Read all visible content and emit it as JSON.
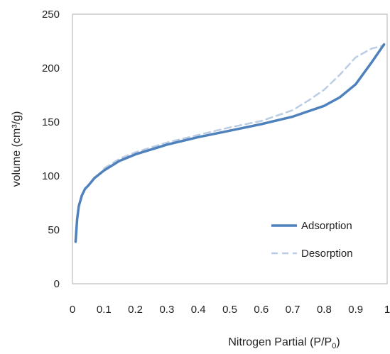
{
  "chart_data": {
    "type": "line",
    "xlabel": "Nitrogen Partial (P/P",
    "xlabel_sub": "0",
    "xlabel_end": ")",
    "ylabel": "volume (cm³/g)",
    "xlim": [
      0,
      1
    ],
    "ylim": [
      0,
      250
    ],
    "x_ticks": [
      0,
      0.1,
      0.2,
      0.3,
      0.4,
      0.5,
      0.6,
      0.7,
      0.8,
      0.9,
      1
    ],
    "x_tick_labels": [
      "0",
      "0.1",
      "0.2",
      "0.3",
      "0.4",
      "0.5",
      "0.6",
      "0.7",
      "0.8",
      "0.9",
      "1"
    ],
    "y_ticks": [
      0,
      50,
      100,
      150,
      200,
      250
    ],
    "y_tick_labels": [
      "0",
      "50",
      "100",
      "150",
      "200",
      "250"
    ],
    "grid": false,
    "legend_position": "bottom-right",
    "series": [
      {
        "name": "Adsorption",
        "color": "#4f81bd",
        "style": "solid",
        "x": [
          0.01,
          0.015,
          0.02,
          0.03,
          0.04,
          0.05,
          0.07,
          0.1,
          0.15,
          0.2,
          0.3,
          0.4,
          0.5,
          0.6,
          0.7,
          0.8,
          0.85,
          0.9,
          0.95,
          0.99
        ],
        "y": [
          39,
          60,
          72,
          82,
          88,
          91,
          98,
          105,
          114,
          120,
          129,
          136,
          142,
          148,
          155,
          165,
          173,
          185,
          205,
          222
        ]
      },
      {
        "name": "Desorption",
        "color": "#b9cde5",
        "style": "dashed",
        "x": [
          0.1,
          0.15,
          0.2,
          0.3,
          0.4,
          0.5,
          0.6,
          0.7,
          0.75,
          0.8,
          0.85,
          0.9,
          0.95,
          0.99
        ],
        "y": [
          107,
          116,
          122,
          131,
          138,
          145,
          151,
          161,
          170,
          180,
          194,
          210,
          218,
          221
        ]
      }
    ]
  }
}
